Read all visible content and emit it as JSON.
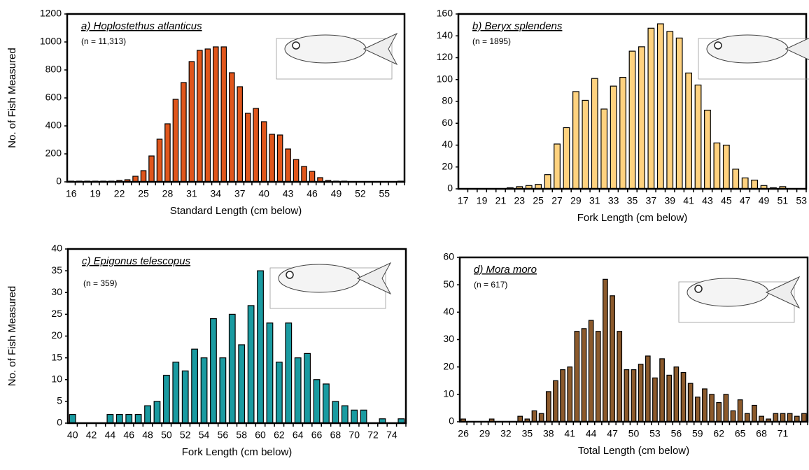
{
  "chart_data": [
    {
      "type": "bar",
      "title": "a) Hoplostethus atlanticus",
      "annotation": "(n = 11,313)",
      "xlabel": "Standard Length (cm below)",
      "ylabel": "No. of Fish Measured",
      "categories": [
        "16",
        null,
        null,
        "19",
        null,
        null,
        "22",
        null,
        null,
        "25",
        null,
        null,
        "28",
        null,
        null,
        "31",
        null,
        null,
        "34",
        null,
        null,
        "37",
        null,
        null,
        "40",
        null,
        null,
        "43",
        null,
        null,
        "46",
        null,
        null,
        "49",
        null,
        null,
        "52",
        null,
        null,
        "55",
        null,
        null
      ],
      "values": [
        5,
        5,
        5,
        5,
        5,
        5,
        10,
        15,
        40,
        80,
        185,
        305,
        415,
        590,
        710,
        860,
        940,
        950,
        965,
        965,
        780,
        680,
        490,
        525,
        430,
        340,
        335,
        235,
        160,
        110,
        75,
        30,
        10,
        5,
        5,
        0,
        0,
        0,
        0,
        0,
        0,
        5
      ],
      "color": "#e0561c",
      "ylim": [
        0,
        1200
      ],
      "yticks": [
        0,
        200,
        400,
        600,
        800,
        1000,
        1200
      ]
    },
    {
      "type": "bar",
      "title": "b) Beryx splendens",
      "annotation": "(n = 1895)",
      "xlabel": "Fork Length  (cm below)",
      "categories": [
        "17",
        null,
        "19",
        null,
        "21",
        null,
        "23",
        null,
        "25",
        null,
        "27",
        null,
        "29",
        null,
        "31",
        null,
        "33",
        null,
        "35",
        null,
        "37",
        null,
        "39",
        null,
        "41",
        null,
        "43",
        null,
        "45",
        null,
        "47",
        null,
        "49",
        null,
        "51",
        null,
        "53"
      ],
      "values": [
        0,
        0,
        0,
        0,
        0,
        1,
        2,
        3,
        4,
        13,
        41,
        56,
        89,
        81,
        101,
        73,
        94,
        102,
        126,
        130,
        147,
        151,
        144,
        138,
        106,
        95,
        72,
        42,
        40,
        18,
        10,
        8,
        3,
        1,
        2,
        0,
        0
      ],
      "color": "#ffd27f",
      "ylim": [
        0,
        160
      ],
      "yticks": [
        0,
        20,
        40,
        60,
        80,
        100,
        120,
        140,
        160
      ]
    },
    {
      "type": "bar",
      "title": "c) Epigonus telescopus",
      "annotation": "(n = 359)",
      "xlabel": "Fork Length  (cm below)",
      "ylabel": "No. of Fish Measured",
      "categories": [
        "40",
        null,
        "42",
        null,
        "44",
        null,
        "46",
        null,
        "48",
        null,
        "50",
        null,
        "52",
        null,
        "54",
        null,
        "56",
        null,
        "58",
        null,
        "60",
        null,
        "62",
        null,
        "64",
        null,
        "66",
        null,
        "68",
        null,
        "70",
        null,
        "72",
        null,
        "74",
        null
      ],
      "values": [
        2,
        0,
        0,
        0,
        2,
        2,
        2,
        2,
        4,
        5,
        11,
        14,
        12,
        17,
        15,
        24,
        15,
        25,
        18,
        27,
        35,
        23,
        14,
        23,
        15,
        16,
        10,
        9,
        5,
        4,
        3,
        3,
        0,
        1,
        0,
        1
      ],
      "color": "#1a9ba1",
      "ylim": [
        0,
        40
      ],
      "yticks": [
        0,
        5,
        10,
        15,
        20,
        25,
        30,
        35,
        40
      ]
    },
    {
      "type": "bar",
      "title": "d) Mora moro",
      "annotation": "(n = 617)",
      "xlabel": "Total Length  (cm below)",
      "categories": [
        "26",
        null,
        null,
        "29",
        null,
        null,
        "32",
        null,
        null,
        "35",
        null,
        null,
        "38",
        null,
        null,
        "41",
        null,
        null,
        "44",
        null,
        null,
        "47",
        null,
        null,
        "50",
        null,
        null,
        "53",
        null,
        null,
        "56",
        null,
        null,
        "59",
        null,
        null,
        "62",
        null,
        null,
        "65",
        null,
        null,
        "68",
        null,
        null,
        "71",
        null,
        null,
        null
      ],
      "values": [
        1,
        0,
        0,
        0,
        1,
        0,
        0,
        0,
        2,
        1,
        4,
        3,
        11,
        15,
        19,
        20,
        33,
        34,
        37,
        33,
        52,
        46,
        33,
        19,
        19,
        21,
        24,
        16,
        23,
        17,
        20,
        18,
        14,
        9,
        12,
        10,
        7,
        10,
        4,
        8,
        3,
        6,
        2,
        1,
        3,
        3,
        3,
        2,
        3
      ],
      "color": "#8c5a2c",
      "ylim": [
        0,
        60
      ],
      "yticks": [
        0,
        10,
        20,
        30,
        40,
        50,
        60
      ]
    }
  ]
}
